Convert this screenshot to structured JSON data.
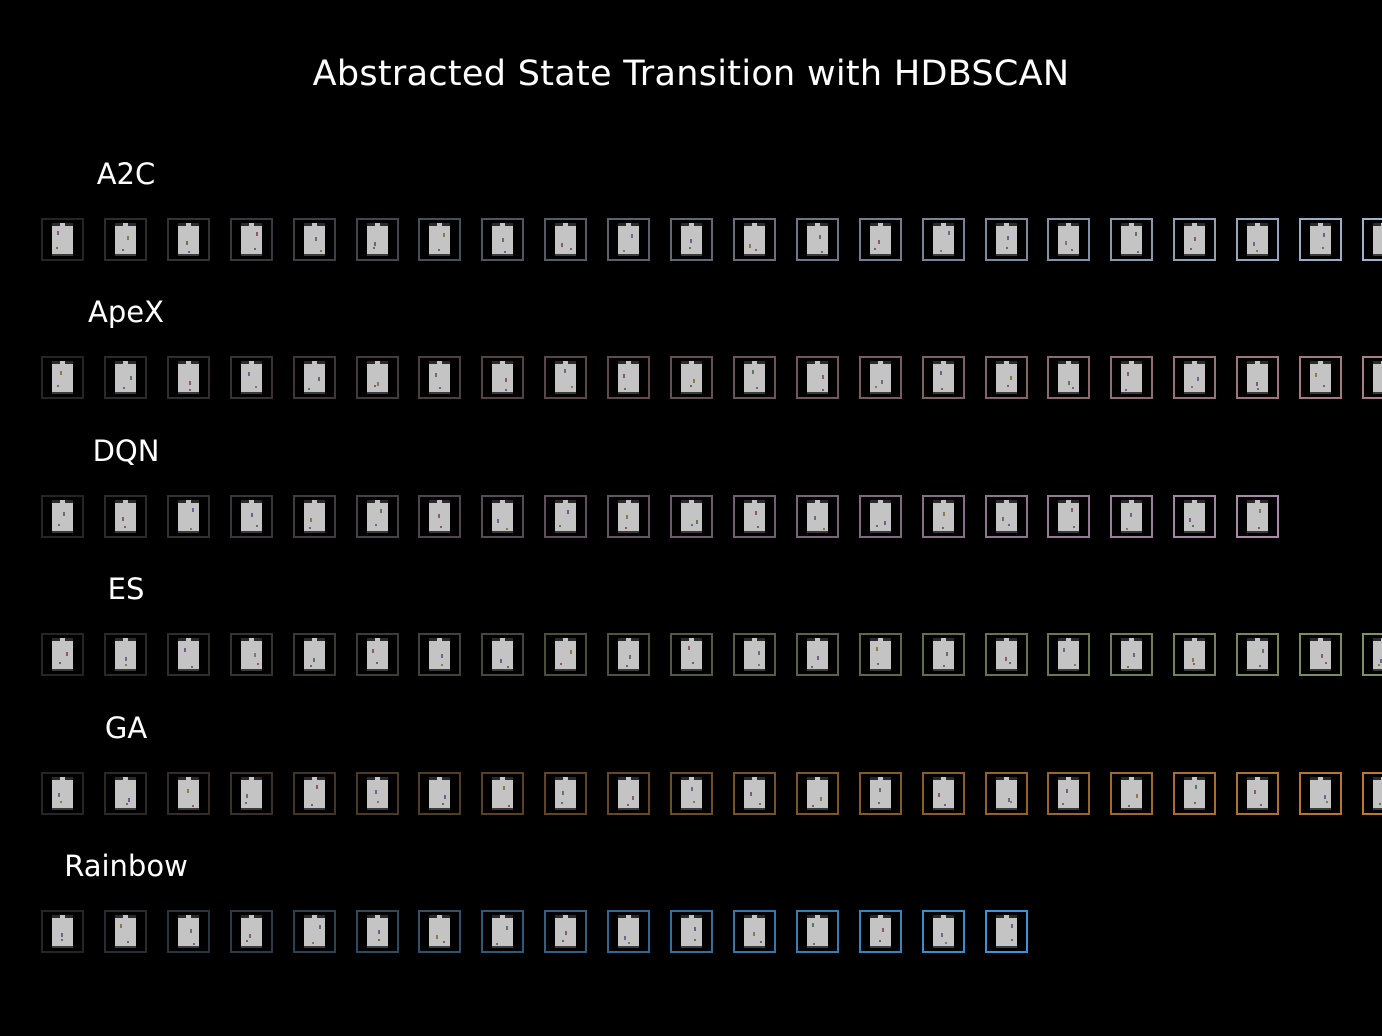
{
  "title": "Abstracted State Transition with HDBSCAN",
  "rows": [
    {
      "label": "A2C",
      "count": 22,
      "end_color": "#9fb4cc"
    },
    {
      "label": "ApeX",
      "count": 22,
      "end_color": "#a97f82"
    },
    {
      "label": "DQN",
      "count": 20,
      "end_color": "#a98aa8"
    },
    {
      "label": "ES",
      "count": 22,
      "end_color": "#7f9260"
    },
    {
      "label": "GA",
      "count": 22,
      "end_color": "#bd7a2c"
    },
    {
      "label": "Rainbow",
      "count": 16,
      "end_color": "#3d93d6"
    }
  ],
  "thumb_start_color": "#252525",
  "thumb_fill": "#c4c4c4"
}
